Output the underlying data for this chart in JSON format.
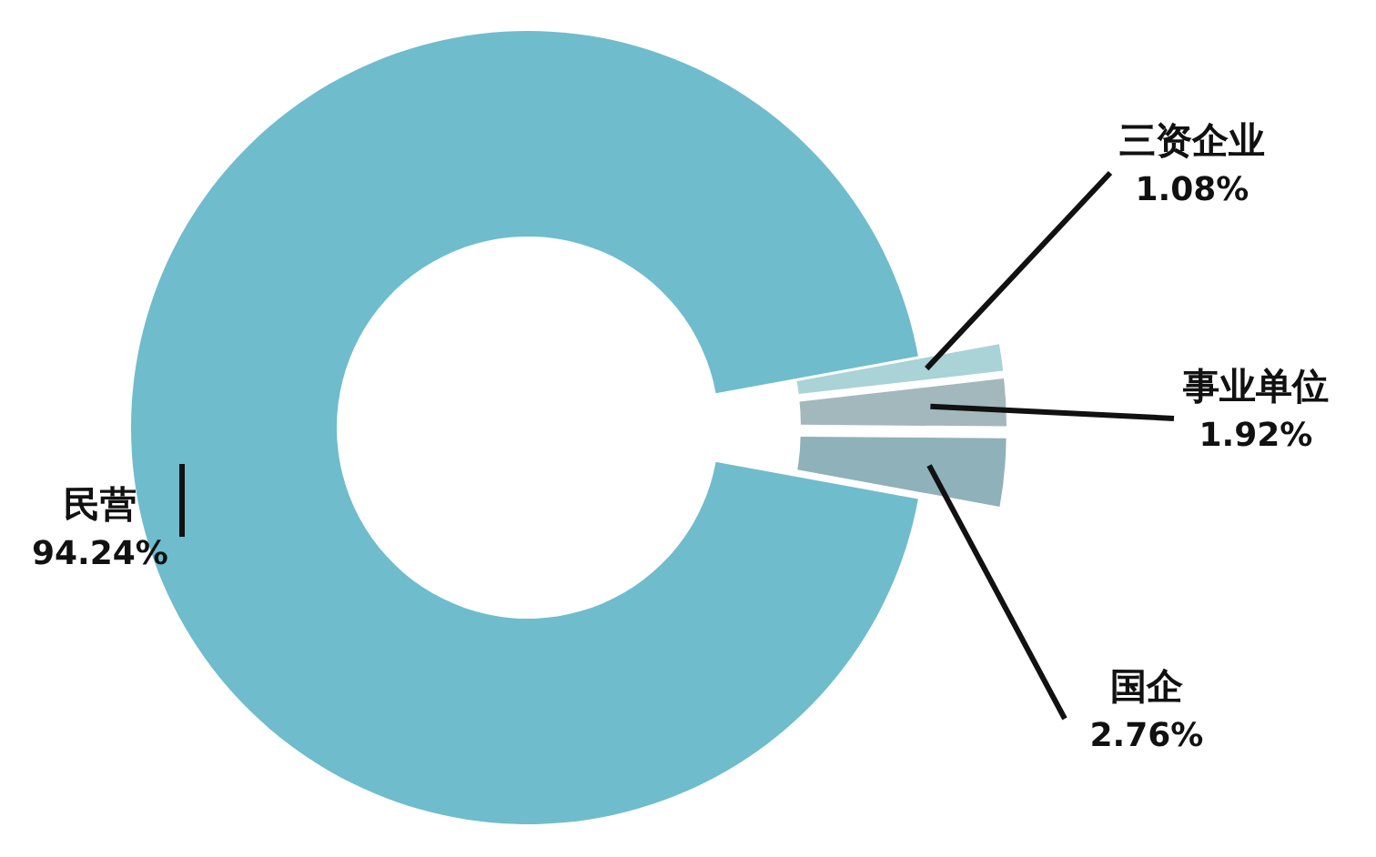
{
  "chart_data": {
    "type": "donut",
    "categories": [
      "三资企业",
      "事业单位",
      "国企",
      "民营"
    ],
    "values": [
      1.08,
      1.92,
      2.76,
      94.24
    ],
    "value_labels": [
      "1.08%",
      "1.92%",
      "2.76%",
      "94.24%"
    ],
    "colors": [
      "#a9d3d6",
      "#a3b8bd",
      "#8fb1b9",
      "#6fbccd"
    ]
  }
}
